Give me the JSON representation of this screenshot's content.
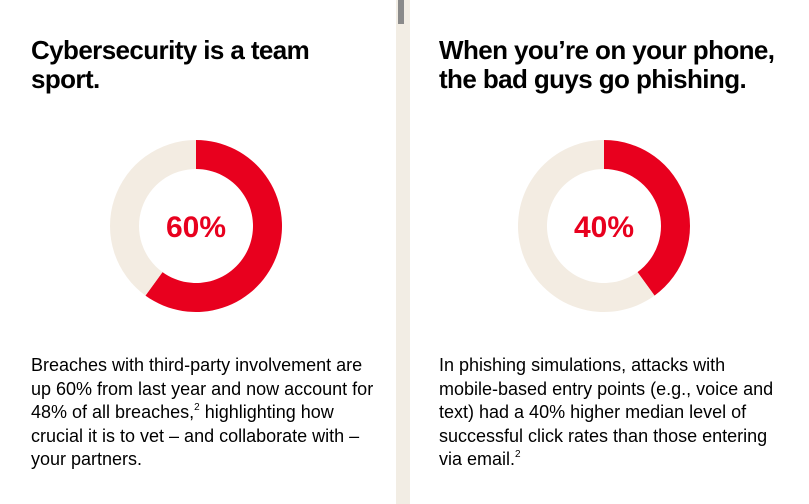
{
  "colors": {
    "accent": "#e8001e",
    "track": "#f3ece2",
    "text": "#000000",
    "card": "#ffffff"
  },
  "panels": [
    {
      "heading": "Cybersecurity is a team sport.",
      "body": "Breaches with third-party involvement are up 60% from last year and now account for 48% of all breaches,",
      "body_tail": "highlighting how crucial it is to vet – and collaborate with – your partners.",
      "footnote": "2"
    },
    {
      "heading": "When you’re on your phone, the bad guys go phishing.",
      "body": "In phishing simulations, attacks with mobile-based entry points (e.g., voice and text) had a 40% higher median level of successful click rates than those entering via email.",
      "body_tail": "",
      "footnote": "2"
    }
  ],
  "chart_data": [
    {
      "type": "pie",
      "title": "",
      "label": "60%",
      "slices": [
        {
          "value": 60,
          "color": "#e8001e"
        },
        {
          "value": 40,
          "color": "#f3ece2"
        }
      ]
    },
    {
      "type": "pie",
      "title": "",
      "label": "40%",
      "slices": [
        {
          "value": 40,
          "color": "#e8001e"
        },
        {
          "value": 60,
          "color": "#f3ece2"
        }
      ]
    }
  ]
}
